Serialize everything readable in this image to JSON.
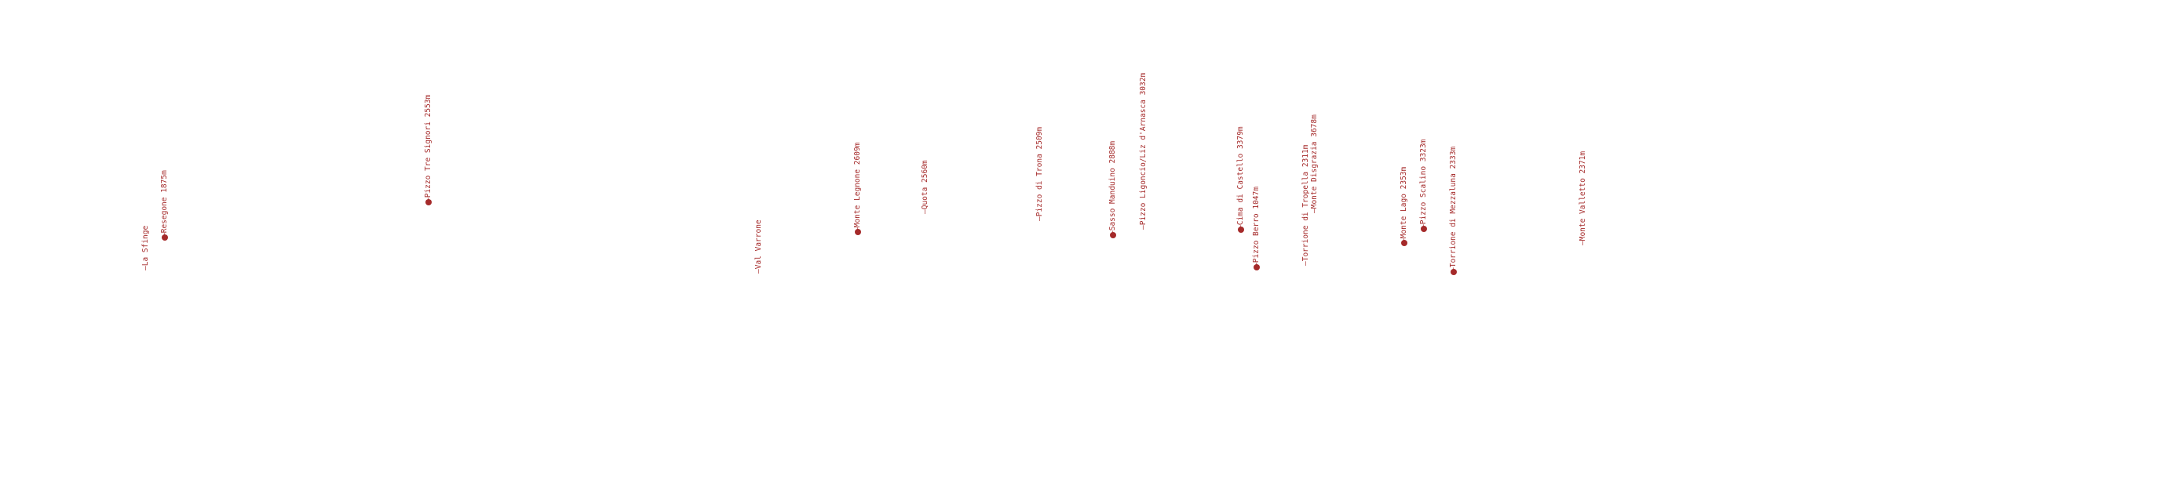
{
  "peaks": [
    {
      "name": "La Sfinge",
      "label": "—La Sfinge",
      "marker": false,
      "color": "#a52a2a"
    },
    {
      "name": "Resegone",
      "label": "—Resegone 1875m",
      "marker": true,
      "color": "#a52a2a"
    },
    {
      "name": "Pizzo Tre Signori",
      "label": "—Pizzo Tre Signori 2553m",
      "marker": true,
      "color": "#a52a2a"
    },
    {
      "name": "Val Varrone",
      "label": "—Val Varrone",
      "marker": false,
      "color": "#a52a2a"
    },
    {
      "name": "Monte Legnone",
      "label": "—Monte Legnone 2609m",
      "marker": true,
      "color": "#a52a2a"
    },
    {
      "name": "Quota 2560m",
      "label": "—Quota 2560m",
      "marker": false,
      "color": "#a52a2a"
    },
    {
      "name": "Pizzo di Trona",
      "label": "—Pizzo di Trona 2509m",
      "marker": false,
      "color": "#a52a2a"
    },
    {
      "name": "Sasso Manduino",
      "label": "—Sasso Manduino 2888m",
      "marker": true,
      "color": "#a52a2a"
    },
    {
      "name": "Pizzo Ligoncio/Liz d'Arnasca",
      "label": "—Pizzo Ligoncio/Liz d'Arnasca 3032m",
      "marker": false,
      "color": "#a52a2a"
    },
    {
      "name": "Cima di Castello",
      "label": "—Cima di Castello 3379m",
      "marker": true,
      "color": "#a52a2a"
    },
    {
      "name": "Pizzo Berro",
      "label": "—Pizzo Berro 1047m",
      "marker": true,
      "color": "#a52a2a"
    },
    {
      "name": "Torrione di Tropella",
      "label": "—Torrione di Tropella 2311m",
      "marker": false,
      "color": "#a52a2a"
    },
    {
      "name": "Monte Disgrazia",
      "label": "—Monte Disgrazia 3678m",
      "marker": false,
      "color": "#a52a2a"
    },
    {
      "name": "Monte Lago",
      "label": "—Monte Lago 2353m",
      "marker": true,
      "color": "#a52a2a"
    },
    {
      "name": "Pizzo Scalino",
      "label": "—Pizzo Scalino 3323m",
      "marker": true,
      "color": "#a52a2a"
    },
    {
      "name": "Torrione di Mezzaluna",
      "label": "—Torrione di Mezzaluna 2333m",
      "marker": true,
      "color": "#a52a2a"
    },
    {
      "name": "Monte Valletto",
      "label": "—Monte Valletto 2371m",
      "marker": false,
      "color": "#a52a2a"
    }
  ]
}
